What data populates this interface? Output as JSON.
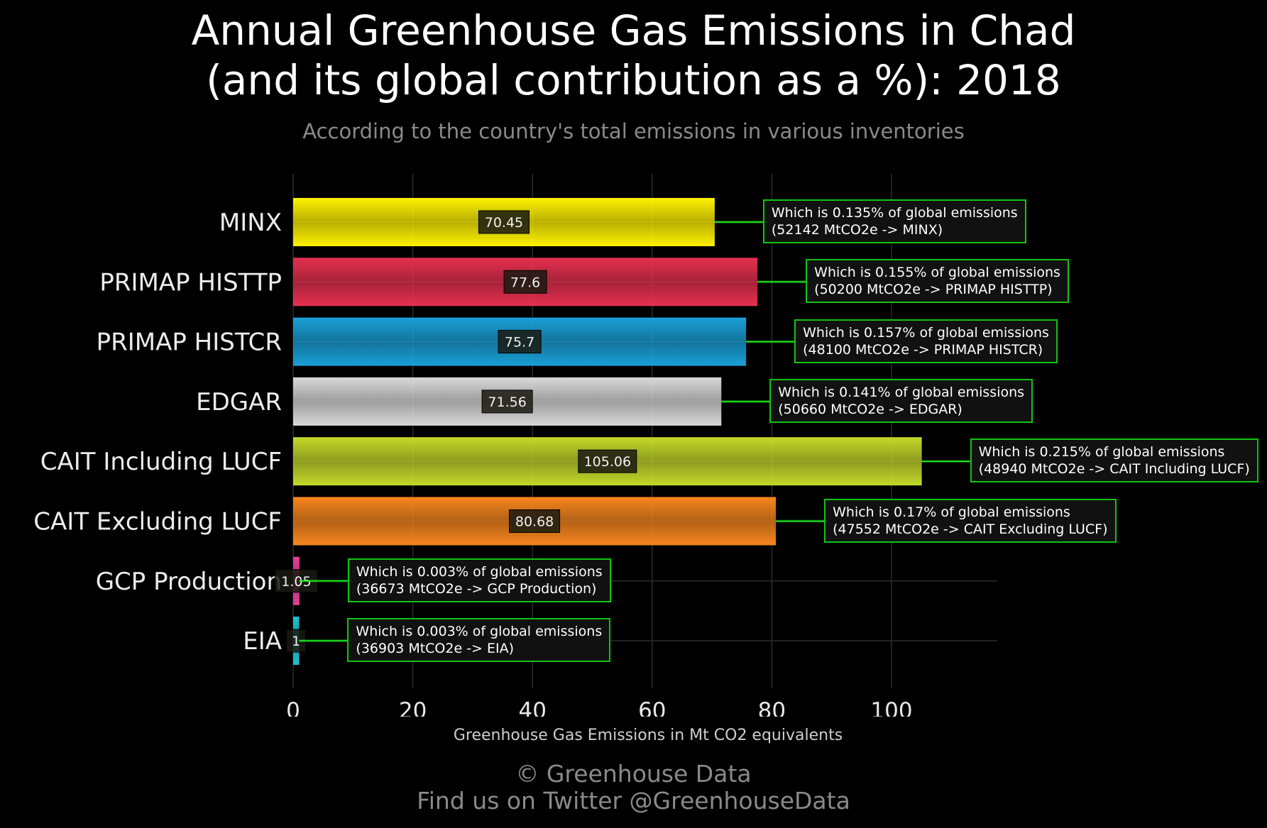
{
  "chart_data": {
    "type": "bar",
    "orientation": "horizontal",
    "title_lines": [
      "Annual Greenhouse Gas Emissions in Chad",
      "(and its global contribution as a %): 2018"
    ],
    "subtitle": "According to the country's total emissions in various inventories",
    "xlabel": "Greenhouse Gas Emissions in Mt CO2 equivalents",
    "ylabel": "",
    "xlim": [
      0,
      118
    ],
    "xticks": [
      0,
      20,
      40,
      60,
      80,
      100
    ],
    "grid": true,
    "categories": [
      "MINX",
      "PRIMAP HISTTP",
      "PRIMAP HISTCR",
      "EDGAR",
      "CAIT Including LUCF",
      "CAIT Excluding LUCF",
      "GCP Production",
      "EIA"
    ],
    "values": [
      70.45,
      77.6,
      75.7,
      71.56,
      105.06,
      80.68,
      1.05,
      1
    ],
    "value_labels": [
      "70.45",
      "77.6",
      "75.7",
      "71.56",
      "105.06",
      "80.68",
      "1.05",
      "1"
    ],
    "colors": [
      "#fff200",
      "#e6304f",
      "#1aa0d8",
      "#d9d9d9",
      "#c3d92a",
      "#f7861e",
      "#e83e9a",
      "#1bc4d0"
    ],
    "annotations": [
      {
        "line1": "Which is 0.135% of global emissions",
        "line2": "(52142 MtCO2e -> MINX)"
      },
      {
        "line1": "Which is 0.155% of global emissions",
        "line2": "(50200 MtCO2e -> PRIMAP HISTTP)"
      },
      {
        "line1": "Which is 0.157% of global emissions",
        "line2": "(48100 MtCO2e -> PRIMAP HISTCR)"
      },
      {
        "line1": "Which is 0.141% of global emissions",
        "line2": "(50660 MtCO2e -> EDGAR)"
      },
      {
        "line1": "Which is 0.215% of global emissions",
        "line2": "(48940 MtCO2e -> CAIT Including LUCF)"
      },
      {
        "line1": "Which is 0.17% of global emissions",
        "line2": "(47552 MtCO2e -> CAIT Excluding LUCF)"
      },
      {
        "line1": "Which is 0.003% of global emissions",
        "line2": "(36673 MtCO2e -> GCP Production)"
      },
      {
        "line1": "Which is 0.003% of global emissions",
        "line2": "(36903 MtCO2e -> EIA)"
      }
    ]
  },
  "footer": {
    "credit_line1": "© Greenhouse Data",
    "credit_line2": "Find us on Twitter @GreenhouseData"
  },
  "colors": {
    "background": "#000000",
    "annotation_border": "#11c411",
    "muted_text": "#8a8a8a"
  }
}
